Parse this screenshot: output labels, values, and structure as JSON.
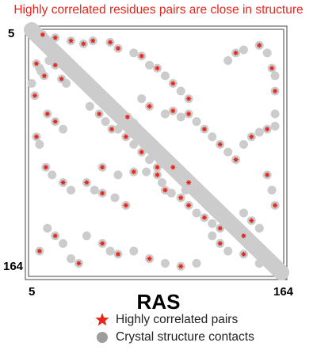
{
  "chart_data": {
    "type": "scatter",
    "title": "Highly correlated residues pairs are close in structure",
    "xlabel": "RAS",
    "xlim": [
      5,
      164
    ],
    "ylim": [
      5,
      164
    ],
    "y_inverted": true,
    "tick_labels": {
      "x_min": "5",
      "x_max": "164",
      "y_min": "5",
      "y_max": "164"
    },
    "colors": {
      "title": "#e8251b",
      "contacts": "#cccccc",
      "correlated": "#e8251b"
    },
    "series": [
      {
        "name": "Crystal structure contacts",
        "marker": "circle-grey",
        "diagonal_band": [
          [
            5,
            164
          ],
          [
            5,
            164
          ]
        ],
        "points": [
          [
            8,
            27
          ],
          [
            10,
            30
          ],
          [
            11,
            32
          ],
          [
            13,
            35
          ],
          [
            16,
            25
          ],
          [
            20,
            28
          ],
          [
            24,
            37
          ],
          [
            27,
            40
          ],
          [
            12,
            8
          ],
          [
            20,
            10
          ],
          [
            30,
            12
          ],
          [
            38,
            14
          ],
          [
            44,
            12
          ],
          [
            55,
            13
          ],
          [
            60,
            17
          ],
          [
            5,
            40
          ],
          [
            7,
            48
          ],
          [
            15,
            60
          ],
          [
            20,
            65
          ],
          [
            25,
            70
          ],
          [
            8,
            75
          ],
          [
            10,
            80
          ],
          [
            14,
            95
          ],
          [
            18,
            100
          ],
          [
            25,
            105
          ],
          [
            30,
            110
          ],
          [
            40,
            105
          ],
          [
            45,
            110
          ],
          [
            50,
            112
          ],
          [
            58,
            115
          ],
          [
            65,
            120
          ],
          [
            50,
            95
          ],
          [
            60,
            100
          ],
          [
            70,
            98
          ],
          [
            78,
            98
          ],
          [
            85,
            100
          ],
          [
            88,
            105
          ],
          [
            90,
            110
          ],
          [
            94,
            112
          ],
          [
            100,
            115
          ],
          [
            103,
            110
          ],
          [
            105,
            120
          ],
          [
            110,
            125
          ],
          [
            115,
            128
          ],
          [
            120,
            132
          ],
          [
            125,
            135
          ],
          [
            75,
            50
          ],
          [
            80,
            55
          ],
          [
            90,
            60
          ],
          [
            95,
            58
          ],
          [
            100,
            62
          ],
          [
            105,
            60
          ],
          [
            110,
            65
          ],
          [
            115,
            70
          ],
          [
            120,
            75
          ],
          [
            125,
            80
          ],
          [
            130,
            85
          ],
          [
            135,
            90
          ],
          [
            140,
            80
          ],
          [
            145,
            75
          ],
          [
            150,
            72
          ],
          [
            155,
            70
          ],
          [
            160,
            68
          ],
          [
            130,
            25
          ],
          [
            135,
            20
          ],
          [
            140,
            18
          ],
          [
            150,
            15
          ],
          [
            155,
            20
          ],
          [
            158,
            30
          ],
          [
            160,
            35
          ],
          [
            160,
            45
          ],
          [
            160,
            60
          ],
          [
            155,
            100
          ],
          [
            158,
            110
          ],
          [
            160,
            120
          ],
          [
            120,
            140
          ],
          [
            125,
            145
          ],
          [
            130,
            150
          ],
          [
            140,
            152
          ],
          [
            150,
            158
          ],
          [
            40,
            140
          ],
          [
            50,
            145
          ],
          [
            55,
            150
          ],
          [
            60,
            152
          ],
          [
            70,
            150
          ],
          [
            80,
            155
          ],
          [
            90,
            158
          ],
          [
            100,
            160
          ],
          [
            110,
            158
          ],
          [
            15,
            135
          ],
          [
            20,
            140
          ],
          [
            25,
            145
          ],
          [
            10,
            150
          ],
          [
            30,
            155
          ],
          [
            35,
            158
          ],
          [
            60,
            70
          ],
          [
            65,
            75
          ],
          [
            70,
            80
          ],
          [
            75,
            85
          ],
          [
            80,
            90
          ],
          [
            85,
            95
          ],
          [
            62,
            60
          ],
          [
            66,
            62
          ],
          [
            70,
            66
          ],
          [
            90,
            90
          ],
          [
            95,
            95
          ],
          [
            100,
            100
          ],
          [
            105,
            105
          ],
          [
            110,
            110
          ],
          [
            140,
            125
          ],
          [
            145,
            130
          ],
          [
            150,
            135
          ],
          [
            140,
            140
          ],
          [
            135,
            135
          ],
          [
            70,
            20
          ],
          [
            75,
            22
          ],
          [
            80,
            28
          ],
          [
            85,
            30
          ],
          [
            90,
            35
          ],
          [
            95,
            40
          ],
          [
            100,
            45
          ],
          [
            105,
            50
          ],
          [
            42,
            55
          ],
          [
            48,
            60
          ],
          [
            52,
            65
          ],
          [
            56,
            70
          ]
        ]
      },
      {
        "name": "Highly correlated pairs",
        "marker": "star-red",
        "points": [
          [
            12,
            8
          ],
          [
            20,
            10
          ],
          [
            30,
            12
          ],
          [
            38,
            14
          ],
          [
            44,
            12
          ],
          [
            55,
            13
          ],
          [
            60,
            17
          ],
          [
            8,
            27
          ],
          [
            13,
            35
          ],
          [
            20,
            28
          ],
          [
            24,
            37
          ],
          [
            7,
            48
          ],
          [
            15,
            60
          ],
          [
            20,
            65
          ],
          [
            8,
            75
          ],
          [
            14,
            95
          ],
          [
            25,
            105
          ],
          [
            40,
            105
          ],
          [
            50,
            112
          ],
          [
            65,
            120
          ],
          [
            50,
            95
          ],
          [
            70,
            98
          ],
          [
            85,
            100
          ],
          [
            90,
            110
          ],
          [
            100,
            115
          ],
          [
            105,
            120
          ],
          [
            115,
            128
          ],
          [
            125,
            135
          ],
          [
            80,
            55
          ],
          [
            95,
            58
          ],
          [
            105,
            60
          ],
          [
            115,
            70
          ],
          [
            125,
            80
          ],
          [
            135,
            90
          ],
          [
            145,
            75
          ],
          [
            155,
            70
          ],
          [
            135,
            20
          ],
          [
            150,
            15
          ],
          [
            158,
            30
          ],
          [
            160,
            45
          ],
          [
            155,
            100
          ],
          [
            160,
            120
          ],
          [
            125,
            145
          ],
          [
            140,
            152
          ],
          [
            50,
            145
          ],
          [
            60,
            152
          ],
          [
            80,
            155
          ],
          [
            100,
            160
          ],
          [
            20,
            140
          ],
          [
            10,
            150
          ],
          [
            35,
            158
          ],
          [
            65,
            75
          ],
          [
            75,
            85
          ],
          [
            85,
            95
          ],
          [
            66,
            62
          ],
          [
            95,
            95
          ],
          [
            105,
            105
          ],
          [
            145,
            130
          ],
          [
            140,
            140
          ],
          [
            75,
            22
          ],
          [
            85,
            30
          ],
          [
            95,
            40
          ],
          [
            105,
            50
          ],
          [
            48,
            60
          ],
          [
            56,
            70
          ]
        ]
      }
    ]
  }
}
